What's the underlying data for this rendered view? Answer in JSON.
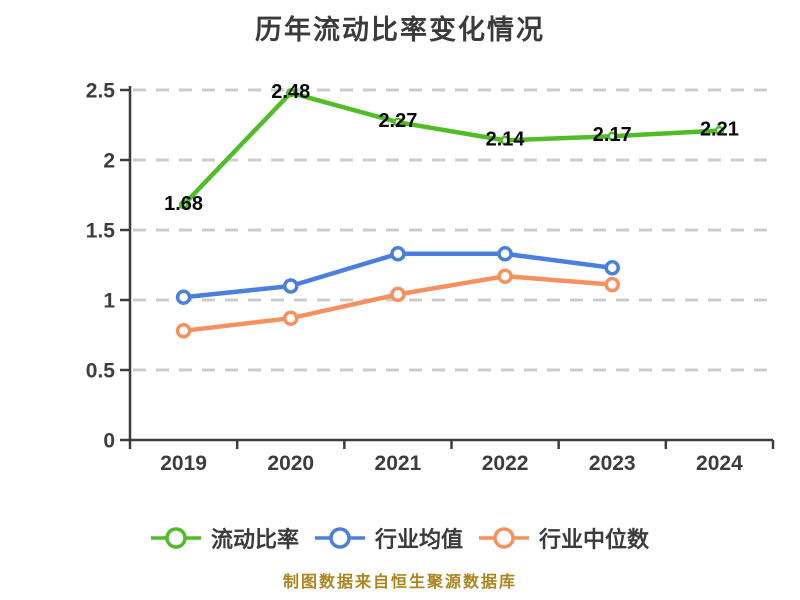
{
  "chart_data": {
    "type": "line",
    "title": "历年流动比率变化情况",
    "categories": [
      "2019",
      "2020",
      "2021",
      "2022",
      "2023",
      "2024"
    ],
    "y_ticks": [
      0,
      0.5,
      1,
      1.5,
      2,
      2.5
    ],
    "ylim": [
      0,
      2.5
    ],
    "grid": "horizontal-dashed",
    "legend_position": "bottom",
    "series": [
      {
        "name": "流动比率",
        "color": "#50bd26",
        "values": [
          1.68,
          2.48,
          2.27,
          2.14,
          2.17,
          2.21
        ],
        "show_labels": true
      },
      {
        "name": "行业均值",
        "color": "#4b7fdd",
        "values": [
          1.02,
          1.1,
          1.33,
          1.33,
          1.23,
          null
        ],
        "show_labels": false
      },
      {
        "name": "行业中位数",
        "color": "#f6915f",
        "values": [
          0.78,
          0.87,
          1.04,
          1.17,
          1.11,
          null
        ],
        "show_labels": false
      }
    ],
    "colors": {
      "axis": "#3d3d3d",
      "grid": "#cccccc",
      "data_label": "#0a0a0a",
      "marker_fill": "#ffffff",
      "title": "#3b3b3b"
    }
  },
  "footer": {
    "text": "制图数据来自恒生聚源数据库",
    "color": "#ad851f"
  }
}
